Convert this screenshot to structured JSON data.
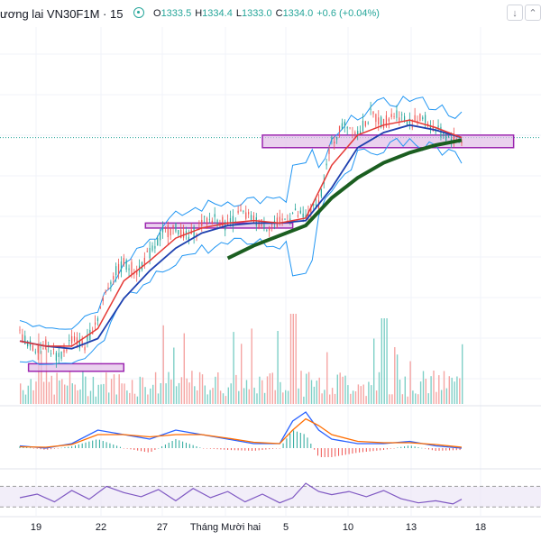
{
  "header": {
    "title": "ương lai VN30F1M · 15",
    "ohlc": [
      {
        "key": "O",
        "value": "1333.5"
      },
      {
        "key": "H",
        "value": "1334.4"
      },
      {
        "key": "L",
        "value": "1333.0"
      },
      {
        "key": "C",
        "value": "1334.0"
      },
      {
        "key": "",
        "value": "+0.6 (+0.04%)"
      }
    ],
    "buttons": [
      {
        "name": "download-button",
        "icon": "arrow-down-icon",
        "glyph": "↓"
      },
      {
        "name": "collapse-button",
        "icon": "chevron-up-icon",
        "glyph": "⌃"
      }
    ]
  },
  "colors": {
    "up": "#26a69a",
    "down": "#ef5350",
    "ma_red": "#e53935",
    "ma_blue": "#1e40af",
    "ma_green": "#1b5e20",
    "bollinger": "#2196f3",
    "zone_fill": "#e1bee7",
    "zone_stroke": "#9c27b0",
    "macd": "#2962ff",
    "signal": "#ff6d00",
    "rsi": "#7e57c2"
  },
  "chart_data": {
    "type": "line",
    "x_ticks": [
      "19",
      "22",
      "27",
      "Tháng Mười hai",
      "5",
      "10",
      "13",
      "18"
    ],
    "price_path": [
      [
        0,
        1268
      ],
      [
        3,
        1262
      ],
      [
        6,
        1264
      ],
      [
        9,
        1258
      ],
      [
        12,
        1266
      ],
      [
        15,
        1263
      ],
      [
        18,
        1275
      ],
      [
        21,
        1290
      ],
      [
        24,
        1296
      ],
      [
        27,
        1293
      ],
      [
        30,
        1300
      ],
      [
        33,
        1308
      ],
      [
        36,
        1310
      ],
      [
        39,
        1306
      ],
      [
        42,
        1312
      ],
      [
        45,
        1314
      ],
      [
        48,
        1311
      ],
      [
        51,
        1316
      ],
      [
        54,
        1313
      ],
      [
        57,
        1311
      ],
      [
        60,
        1312
      ],
      [
        63,
        1316
      ],
      [
        66,
        1314
      ],
      [
        69,
        1320
      ],
      [
        72,
        1344
      ],
      [
        75,
        1352
      ],
      [
        78,
        1348
      ],
      [
        81,
        1355
      ],
      [
        84,
        1352
      ],
      [
        87,
        1356
      ],
      [
        90,
        1352
      ],
      [
        93,
        1354
      ],
      [
        96,
        1349
      ],
      [
        99,
        1346
      ],
      [
        102,
        1345
      ]
    ],
    "ma_red": [
      [
        0,
        1265
      ],
      [
        6,
        1263
      ],
      [
        12,
        1263
      ],
      [
        18,
        1270
      ],
      [
        24,
        1289
      ],
      [
        30,
        1297
      ],
      [
        36,
        1306
      ],
      [
        42,
        1310
      ],
      [
        48,
        1312
      ],
      [
        54,
        1313
      ],
      [
        60,
        1312
      ],
      [
        66,
        1314
      ],
      [
        72,
        1335
      ],
      [
        78,
        1347
      ],
      [
        84,
        1351
      ],
      [
        90,
        1353
      ],
      [
        96,
        1350
      ],
      [
        102,
        1346
      ]
    ],
    "ma_blue": [
      [
        0,
        1265
      ],
      [
        6,
        1263
      ],
      [
        12,
        1262
      ],
      [
        18,
        1266
      ],
      [
        24,
        1282
      ],
      [
        30,
        1293
      ],
      [
        36,
        1302
      ],
      [
        42,
        1308
      ],
      [
        48,
        1311
      ],
      [
        54,
        1312
      ],
      [
        60,
        1312
      ],
      [
        66,
        1313
      ],
      [
        72,
        1326
      ],
      [
        78,
        1342
      ],
      [
        84,
        1348
      ],
      [
        90,
        1351
      ],
      [
        96,
        1349
      ],
      [
        102,
        1346
      ]
    ],
    "ma_green": [
      [
        48,
        1298
      ],
      [
        54,
        1303
      ],
      [
        60,
        1307
      ],
      [
        66,
        1311
      ],
      [
        72,
        1322
      ],
      [
        78,
        1330
      ],
      [
        84,
        1336
      ],
      [
        90,
        1340
      ],
      [
        96,
        1343
      ],
      [
        102,
        1345
      ]
    ],
    "zones": [
      {
        "x0": 2,
        "x1": 24,
        "y0": 1253,
        "y1": 1256
      },
      {
        "x0": 29,
        "x1": 63,
        "y0": 1310,
        "y1": 1312
      },
      {
        "x0": 56,
        "x1": 114,
        "y0": 1342,
        "y1": 1347
      }
    ],
    "ref_price": 1346,
    "y_range": [
      1240,
      1390
    ],
    "x_range": [
      -4,
      116
    ],
    "macd_line": [
      [
        0,
        0.5
      ],
      [
        6,
        0
      ],
      [
        12,
        1
      ],
      [
        18,
        4
      ],
      [
        24,
        3
      ],
      [
        30,
        2
      ],
      [
        36,
        4
      ],
      [
        42,
        3
      ],
      [
        48,
        2
      ],
      [
        54,
        1
      ],
      [
        60,
        1
      ],
      [
        63,
        6
      ],
      [
        66,
        8
      ],
      [
        69,
        4
      ],
      [
        72,
        2
      ],
      [
        78,
        1
      ],
      [
        84,
        1
      ],
      [
        90,
        1.5
      ],
      [
        96,
        0.5
      ],
      [
        102,
        0
      ]
    ],
    "signal_line": [
      [
        0,
        0.3
      ],
      [
        6,
        0.2
      ],
      [
        12,
        0.8
      ],
      [
        18,
        3
      ],
      [
        24,
        3
      ],
      [
        30,
        2.5
      ],
      [
        36,
        3
      ],
      [
        42,
        3
      ],
      [
        48,
        2.2
      ],
      [
        54,
        1.3
      ],
      [
        60,
        1
      ],
      [
        63,
        4
      ],
      [
        66,
        6.5
      ],
      [
        69,
        5
      ],
      [
        72,
        3
      ],
      [
        78,
        1.5
      ],
      [
        84,
        1.2
      ],
      [
        90,
        1.2
      ],
      [
        96,
        0.8
      ],
      [
        102,
        0.2
      ]
    ],
    "rsi": [
      [
        0,
        48
      ],
      [
        4,
        55
      ],
      [
        8,
        40
      ],
      [
        12,
        62
      ],
      [
        16,
        45
      ],
      [
        20,
        70
      ],
      [
        24,
        58
      ],
      [
        28,
        50
      ],
      [
        32,
        64
      ],
      [
        36,
        42
      ],
      [
        40,
        66
      ],
      [
        44,
        48
      ],
      [
        48,
        60
      ],
      [
        52,
        40
      ],
      [
        56,
        55
      ],
      [
        60,
        38
      ],
      [
        63,
        48
      ],
      [
        66,
        76
      ],
      [
        69,
        60
      ],
      [
        72,
        54
      ],
      [
        76,
        60
      ],
      [
        80,
        50
      ],
      [
        84,
        62
      ],
      [
        88,
        46
      ],
      [
        92,
        38
      ],
      [
        96,
        42
      ],
      [
        100,
        36
      ],
      [
        102,
        45
      ]
    ]
  }
}
